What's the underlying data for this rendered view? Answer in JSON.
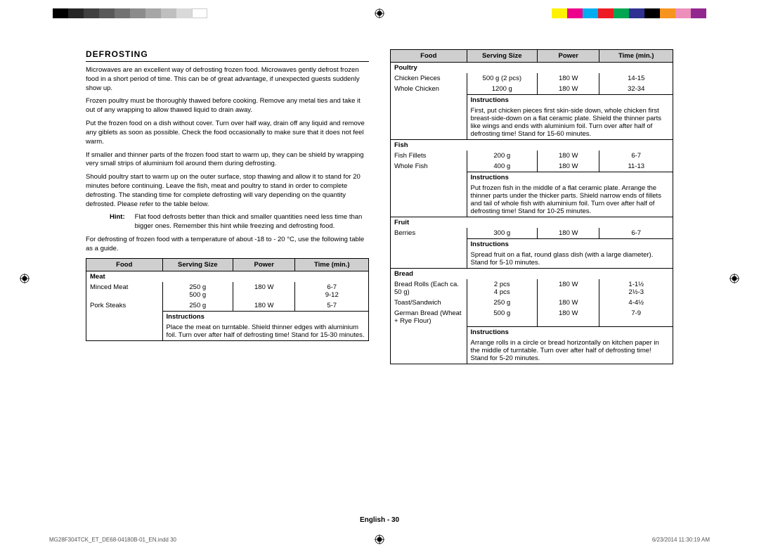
{
  "colorbars": {
    "left": [
      "#000000",
      "#262626",
      "#404040",
      "#595959",
      "#737373",
      "#8c8c8c",
      "#a6a6a6",
      "#bfbfbf",
      "#d9d9d9",
      "#ffffff"
    ],
    "right": [
      "#fff200",
      "#ec008c",
      "#00aeef",
      "#ed1c24",
      "#00a651",
      "#2e3192",
      "#000000",
      "#f7941d",
      "#ec8fbb",
      "#92278f"
    ]
  },
  "heading": "DEFROSTING",
  "paras": [
    "Microwaves are an excellent way of defrosting frozen food. Microwaves gently defrost frozen food in a short period of time. This can be of great advantage, if unexpected guests suddenly show up.",
    "Frozen poultry must be thoroughly thawed before cooking. Remove any metal ties and take it out of any wrapping to allow thawed liquid to drain away.",
    "Put the frozen food on a dish without cover. Turn over half way, drain off any liquid and remove any giblets as soon as possible. Check the food occasionally to make sure that it does not feel warm.",
    "If smaller and thinner parts of the frozen food start to warm up, they can be shield by wrapping very small strips of aluminium foil around them during defrosting.",
    "Should poultry start to warm up on the outer surface, stop thawing and allow it to stand for 20 minutes before continuing. Leave the fish, meat and poultry to stand in order to complete defrosting. The standing time for complete defrosting will vary depending on the quantity defrosted. Please refer to the table below."
  ],
  "hint_label": "Hint:",
  "hint_text": "Flat food defrosts better than thick and smaller quantities need less time than bigger ones. Remember this hint while freezing and defrosting food.",
  "guide_para": "For defrosting of frozen food with a temperature of about -18 to - 20 °C, use the following table as a guide.",
  "headers": {
    "food": "Food",
    "serving": "Serving Size",
    "power": "Power",
    "time": "Time (min.)"
  },
  "instr_label": "Instructions",
  "left_table": {
    "cat": "Meat",
    "rows": [
      {
        "food": "Minced Meat",
        "serving": "250 g\n500 g",
        "power": "180 W",
        "time": "6-7\n9-12"
      },
      {
        "food": "Pork Steaks",
        "serving": "250 g",
        "power": "180 W",
        "time": "5-7"
      }
    ],
    "instr": "Place the meat on turntable. Shield thinner edges with aluminium foil. Turn over after half of defrosting time! Stand for 15-30 minutes."
  },
  "right_table": [
    {
      "cat": "Poultry",
      "rows": [
        {
          "food": "Chicken Pieces",
          "serving": "500 g (2 pcs)",
          "power": "180 W",
          "time": "14-15"
        },
        {
          "food": "Whole Chicken",
          "serving": "1200 g",
          "power": "180 W",
          "time": "32-34"
        }
      ],
      "instr": "First, put chicken pieces first skin-side down, whole chicken first breast-side-down on a flat ceramic plate. Shield the thinner parts like wings and ends with aluminium foil. Turn over after half of defrosting time! Stand for 15-60 minutes."
    },
    {
      "cat": "Fish",
      "rows": [
        {
          "food": "Fish Fillets",
          "serving": "200 g",
          "power": "180 W",
          "time": "6-7"
        },
        {
          "food": "Whole Fish",
          "serving": "400 g",
          "power": "180 W",
          "time": "11-13"
        }
      ],
      "instr": "Put frozen fish in the middle of a flat ceramic plate. Arrange the thinner parts under the thicker parts. Shield narrow ends of fillets and tail of whole fish with aluminium foil. Turn over after half of defrosting time! Stand for 10-25 minutes."
    },
    {
      "cat": "Fruit",
      "rows": [
        {
          "food": "Berries",
          "serving": "300 g",
          "power": "180 W",
          "time": "6-7"
        }
      ],
      "instr": "Spread fruit on a flat, round glass dish (with a large diameter). Stand for 5-10 minutes."
    },
    {
      "cat": "Bread",
      "rows": [
        {
          "food": "Bread Rolls (Each ca. 50 g)",
          "serving": "2 pcs\n4 pcs",
          "power": "180 W",
          "time": "1-1½\n2½-3"
        },
        {
          "food": "Toast/Sandwich",
          "serving": "250 g",
          "power": "180 W",
          "time": "4-4½"
        },
        {
          "food": "German Bread (Wheat + Rye Flour)",
          "serving": "500 g",
          "power": "180 W",
          "time": "7-9"
        }
      ],
      "instr": "Arrange rolls in a circle or bread horizontally on kitchen paper in the middle of turntable. Turn over after half of defrosting time! Stand for 5-20 minutes."
    }
  ],
  "footer": {
    "center": "English - 30",
    "left": "MG28F304TCK_ET_DE68-04180B-01_EN.indd   30",
    "right": "6/23/2014   11:30:19 AM"
  }
}
